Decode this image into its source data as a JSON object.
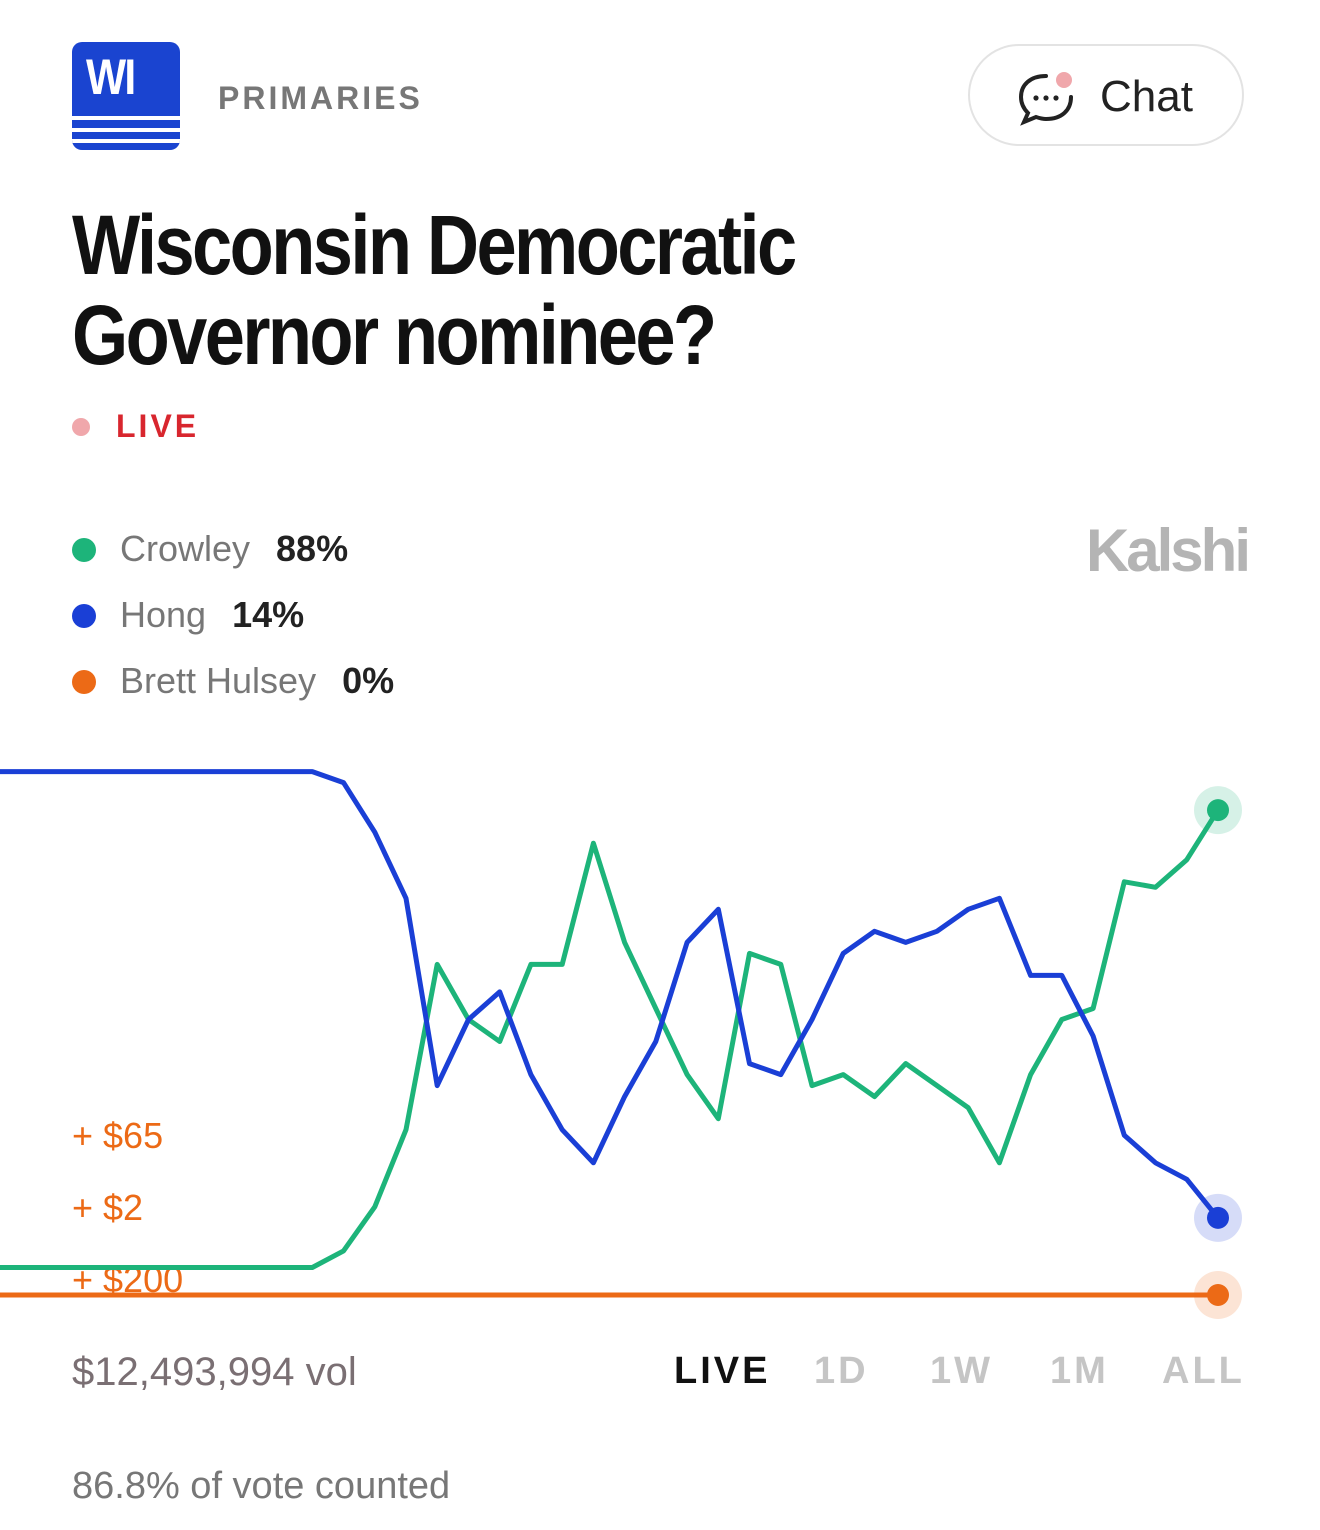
{
  "header": {
    "badge": "WI",
    "section": "PRIMARIES",
    "chat": "Chat"
  },
  "title": "Wisconsin Democratic Governor nominee?",
  "status": "LIVE",
  "brand": "Kalshi",
  "chart_data": {
    "type": "line",
    "ylim": [
      0,
      100
    ],
    "series": [
      {
        "name": "Crowley",
        "color": "#1db47a",
        "legend_value": {
          "value": 88,
          "label": "88%"
        },
        "values": [
          5,
          5,
          5,
          5,
          5,
          5,
          5,
          5,
          5,
          5,
          5,
          8,
          16,
          30,
          60,
          50,
          46,
          60,
          60,
          82,
          64,
          52,
          40,
          32,
          62,
          60,
          38,
          40,
          36,
          42,
          38,
          34,
          24,
          40,
          50,
          52,
          75,
          74,
          79,
          88
        ]
      },
      {
        "name": "Hong",
        "color": "#1a3fd6",
        "legend_value": {
          "value": 14,
          "label": "14%"
        },
        "values": [
          95,
          95,
          95,
          95,
          95,
          95,
          95,
          95,
          95,
          95,
          95,
          93,
          84,
          72,
          38,
          50,
          55,
          40,
          30,
          24,
          36,
          46,
          64,
          70,
          42,
          40,
          50,
          62,
          66,
          64,
          66,
          70,
          72,
          58,
          58,
          47,
          29,
          24,
          21,
          14
        ]
      },
      {
        "name": "Brett Hulsey",
        "color": "#ec6a16",
        "legend_value": {
          "value": 0,
          "label": "0%"
        },
        "values": [
          0,
          0,
          0,
          0,
          0,
          0,
          0,
          0,
          0,
          0,
          0,
          0,
          0,
          0,
          0,
          0,
          0,
          0,
          0,
          0,
          0,
          0,
          0,
          0,
          0,
          0,
          0,
          0,
          0,
          0,
          0,
          0,
          0,
          0,
          0,
          0,
          0,
          0,
          0,
          0
        ]
      }
    ],
    "annotations": [
      "+ $65",
      "+ $2",
      "+ $200"
    ]
  },
  "volume": {
    "amount": "$12,493,994",
    "unit": "vol"
  },
  "ranges": [
    "LIVE",
    "1D",
    "1W",
    "1M",
    "ALL"
  ],
  "footer": "86.8% of vote counted"
}
